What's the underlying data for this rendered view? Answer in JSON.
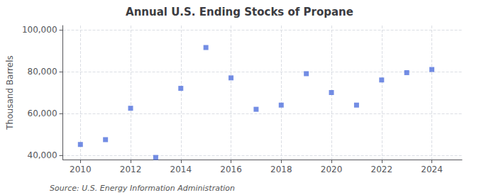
{
  "chart_data": {
    "type": "scatter",
    "title": "Annual U.S. Ending Stocks of Propane",
    "ylabel": "Thousand Barrels",
    "annotations": [
      "Source: U.S. Energy Information Administration"
    ],
    "marker": "square",
    "x": [
      2010,
      2011,
      2012,
      2013,
      2014,
      2015,
      2016,
      2017,
      2018,
      2019,
      2020,
      2021,
      2022,
      2023,
      2024
    ],
    "values": [
      45200,
      47500,
      62500,
      39000,
      72000,
      91500,
      77000,
      62000,
      64000,
      79000,
      70000,
      64000,
      76000,
      79500,
      81000
    ],
    "xlim": [
      2009.3,
      2025.2
    ],
    "xticks": [
      2010,
      2012,
      2014,
      2016,
      2018,
      2020,
      2022,
      2024
    ],
    "ylim": [
      38000,
      102000
    ],
    "yticks": [
      {
        "value": 40000,
        "label": "40,000"
      },
      {
        "value": 60000,
        "label": "60,000"
      },
      {
        "value": 80000,
        "label": "80,000"
      },
      {
        "value": 100000,
        "label": "100,000"
      }
    ],
    "grid": true
  }
}
